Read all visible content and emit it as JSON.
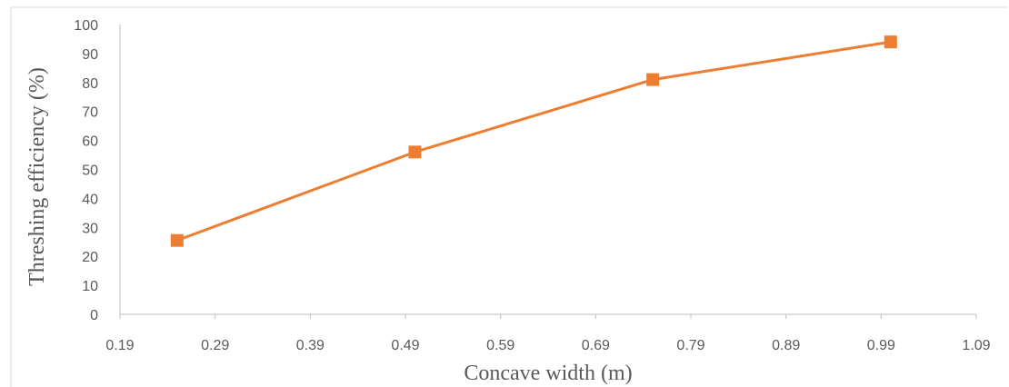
{
  "chart_data": {
    "type": "line",
    "title": "",
    "xlabel": "Concave width (m)",
    "ylabel": "Threshing efficiency (%)",
    "xlim": [
      0.19,
      1.09
    ],
    "ylim": [
      0,
      100
    ],
    "x_ticks": [
      "0.19",
      "0.29",
      "0.39",
      "0.49",
      "0.59",
      "0.69",
      "0.79",
      "0.89",
      "0.99",
      "1.09"
    ],
    "y_ticks": [
      "0",
      "10",
      "20",
      "30",
      "40",
      "50",
      "60",
      "70",
      "80",
      "90",
      "100"
    ],
    "grid": false,
    "legend": "none",
    "series": [
      {
        "x": [
          0.25,
          0.5,
          0.75,
          1.0
        ],
        "y": [
          25.5,
          56,
          81,
          94
        ],
        "color": "#ED7D31",
        "marker": "square"
      }
    ]
  }
}
